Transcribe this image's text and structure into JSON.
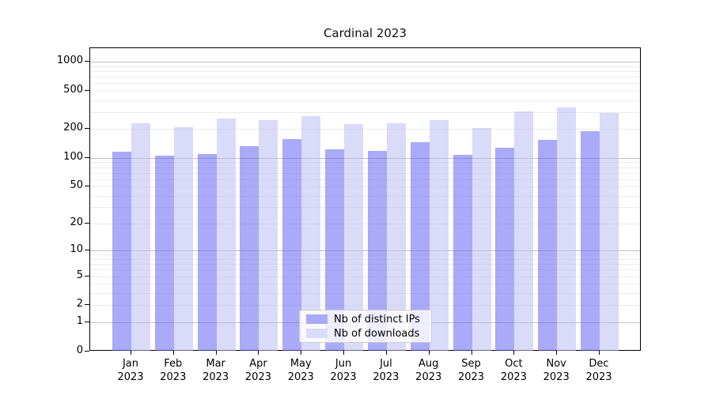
{
  "title": "Cardinal 2023",
  "legend": {
    "items": [
      {
        "label": "Nb of distinct IPs",
        "swatch_color": "#aaaaf8"
      },
      {
        "label": "Nb of downloads",
        "swatch_color": "#dadaf9"
      }
    ]
  },
  "colors": {
    "bar_ips_fill": "rgba(100,100,242,0.55)",
    "bar_downloads_fill": "rgba(188,188,244,0.55)",
    "major_grid": "#c2c2c2",
    "minor_grid": "#ececec",
    "spine": "#000000"
  },
  "chart_data": {
    "type": "bar",
    "title": "Cardinal 2023",
    "scale": "log1p",
    "xlabel": "",
    "ylabel": "",
    "ylim": [
      0,
      1400
    ],
    "yticks": [
      0,
      1,
      2,
      5,
      10,
      20,
      50,
      100,
      200,
      500,
      1000
    ],
    "grid": true,
    "legend_position": "lower center",
    "categories": [
      "Jan",
      "Feb",
      "Mar",
      "Apr",
      "May",
      "Jun",
      "Jul",
      "Aug",
      "Sep",
      "Oct",
      "Nov",
      "Dec"
    ],
    "category_year": "2023",
    "series": [
      {
        "name": "Nb of distinct IPs",
        "values": [
          117,
          106,
          109,
          134,
          159,
          123,
          118,
          146,
          108,
          129,
          154,
          190
        ]
      },
      {
        "name": "Nb of downloads",
        "values": [
          232,
          209,
          259,
          248,
          275,
          225,
          232,
          246,
          204,
          303,
          335,
          294
        ]
      }
    ]
  }
}
